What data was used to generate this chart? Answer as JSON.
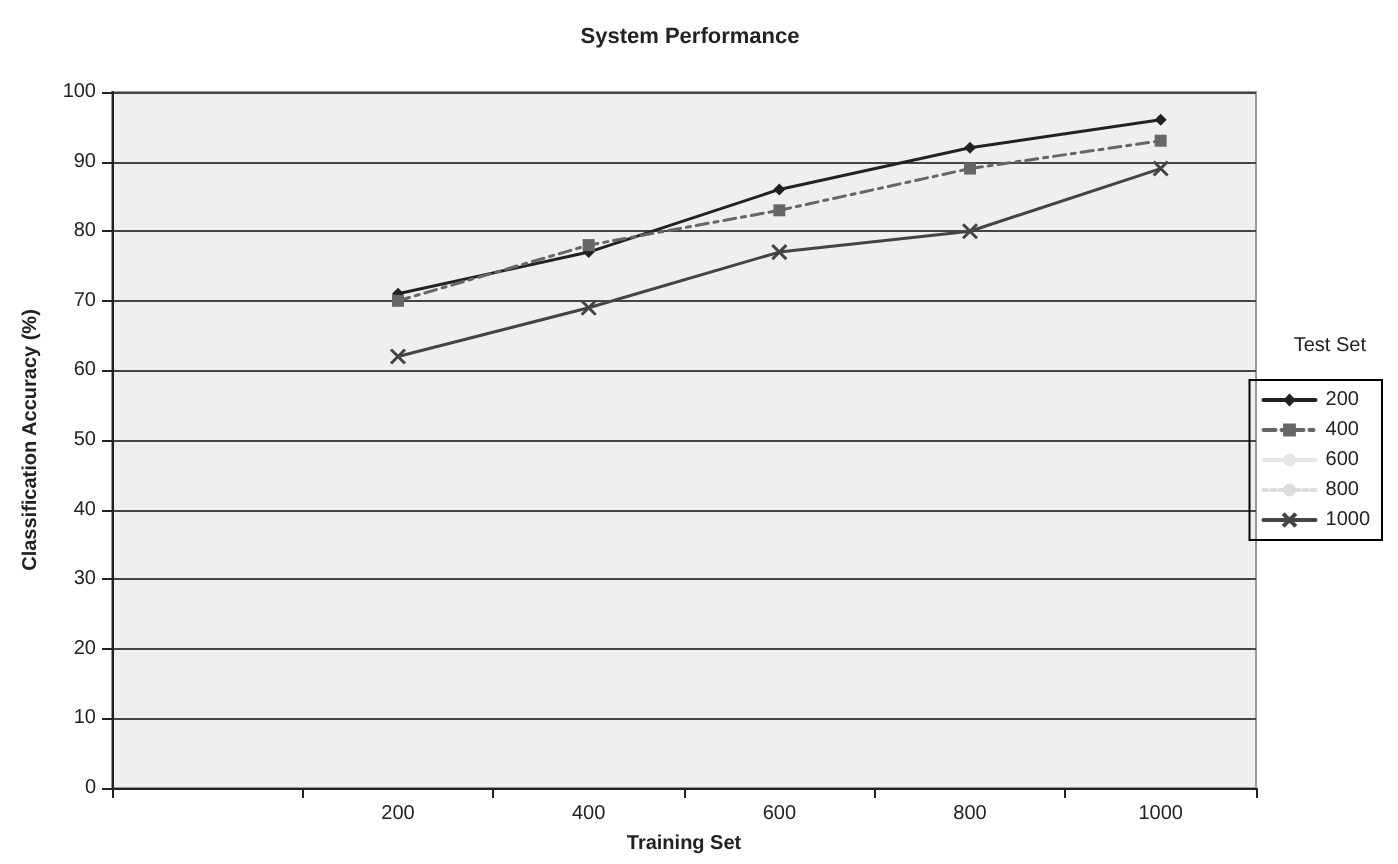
{
  "chart_data": {
    "type": "line",
    "title": "System Performance",
    "xlabel": "Training Set",
    "ylabel": "Classification Accuracy (%)",
    "legend_title": "Test Set",
    "categories": [
      null,
      "200",
      "400",
      "600",
      "800",
      "1000"
    ],
    "series": [
      {
        "name": "200",
        "color": "#222222",
        "marker": "diamond",
        "line_style": "solid",
        "values": [
          null,
          71,
          77,
          86,
          92,
          96
        ]
      },
      {
        "name": "400",
        "color": "#666666",
        "marker": "square",
        "line_style": "dashed",
        "values": [
          null,
          70,
          78,
          83,
          89,
          93
        ]
      },
      {
        "name": "600",
        "color": "#e6e6e6",
        "marker": "none",
        "line_style": "solid",
        "values": [
          null,
          null,
          null,
          null,
          null,
          null
        ]
      },
      {
        "name": "800",
        "color": "#dddddd",
        "marker": "none",
        "line_style": "dotted",
        "values": [
          null,
          null,
          null,
          null,
          null,
          null
        ]
      },
      {
        "name": "1000",
        "color": "#444444",
        "marker": "cross",
        "line_style": "solid",
        "values": [
          null,
          62,
          69,
          77,
          80,
          89
        ]
      }
    ],
    "ylim": [
      0,
      100
    ],
    "yticks": [
      0,
      10,
      20,
      30,
      40,
      50,
      60,
      70,
      80,
      90,
      100
    ],
    "grid": "y",
    "legend": "right"
  }
}
